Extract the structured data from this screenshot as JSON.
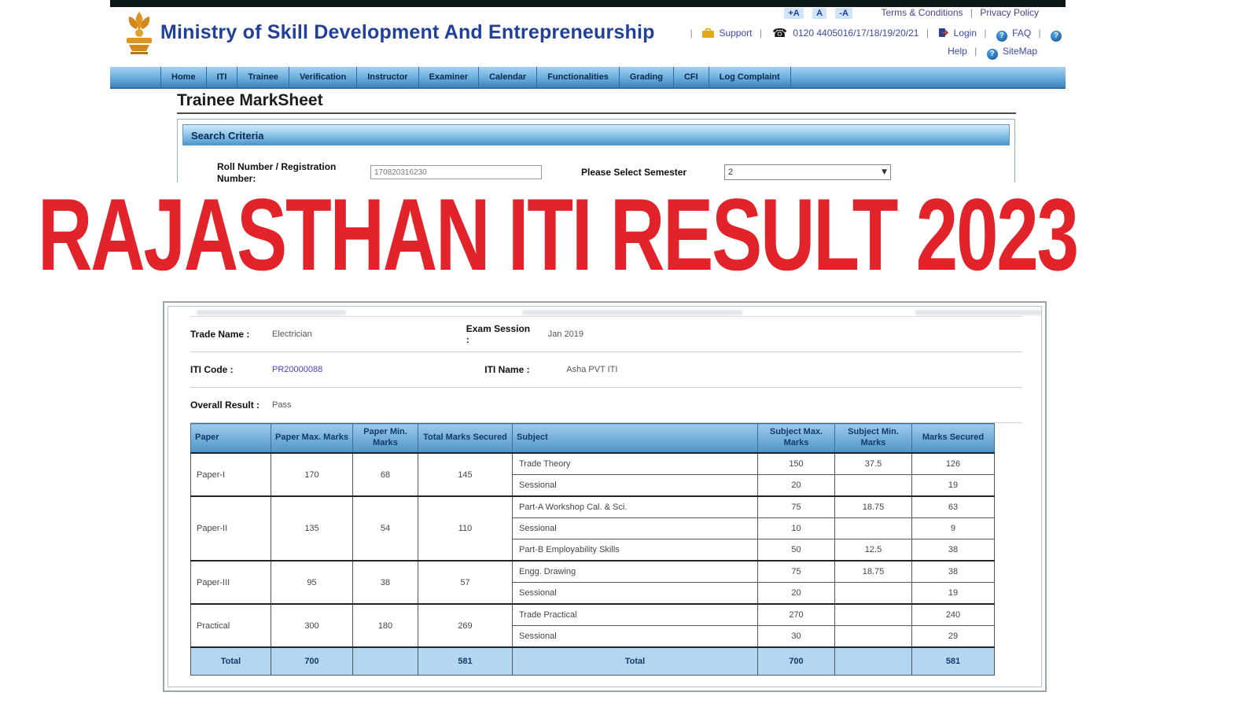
{
  "banner": {
    "text": "RAJASTHAN ITI RESULT 2023",
    "color": "#e2232a"
  },
  "header": {
    "ministry_title": "Ministry of Skill Development And Entrepreneurship",
    "font_size_controls": [
      "+A",
      "A",
      "-A"
    ],
    "sep": "|",
    "terms": "Terms & Conditions",
    "privacy": "Privacy Policy",
    "support": "Support",
    "phone": "0120 4405016/17/18/19/20/21",
    "login": "Login",
    "faq": "FAQ",
    "help": "Help",
    "sitemap": "SiteMap"
  },
  "nav": {
    "items": [
      "Home",
      "ITI",
      "Trainee",
      "Verification",
      "Instructor",
      "Examiner",
      "Calendar",
      "Functionalities",
      "Grading",
      "CFI",
      "Log Complaint"
    ]
  },
  "page": {
    "title": "Trainee MarkSheet",
    "search": {
      "heading": "Search Criteria",
      "roll_label": "Roll Number / Registration Number:",
      "roll_value": "170820316230",
      "semester_label": "Please Select Semester",
      "semester_value": "2"
    },
    "info": {
      "trade_name_label": "Trade Name :",
      "trade_name": "Electrician",
      "exam_session_label": "Exam Session :",
      "exam_session": "Jan 2019",
      "iti_code_label": "ITI Code :",
      "iti_code": "PR20000088",
      "iti_name_label": "ITI Name :",
      "iti_name": "Asha PVT ITI",
      "overall_result_label": "Overall Result :",
      "overall_result": "Pass"
    },
    "table": {
      "headers": [
        "Paper",
        "Paper Max. Marks",
        "Paper Min. Marks",
        "Total Marks Secured",
        "Subject",
        "Subject Max. Marks",
        "Subject Min. Marks",
        "Marks Secured"
      ],
      "papers": [
        {
          "paper": "Paper-I",
          "max": "170",
          "min": "68",
          "secured": "145",
          "subjects": [
            {
              "name": "Trade Theory",
              "max": "150",
              "min": "37.5",
              "secured": "126"
            },
            {
              "name": "Sessional",
              "max": "20",
              "min": "",
              "secured": "19"
            }
          ]
        },
        {
          "paper": "Paper-II",
          "max": "135",
          "min": "54",
          "secured": "110",
          "subjects": [
            {
              "name": "Part-A Workshop Cal. & Sci.",
              "max": "75",
              "min": "18.75",
              "secured": "63"
            },
            {
              "name": "Sessional",
              "max": "10",
              "min": "",
              "secured": "9"
            },
            {
              "name": "Part-B Employability Skills",
              "max": "50",
              "min": "12.5",
              "secured": "38"
            }
          ]
        },
        {
          "paper": "Paper-III",
          "max": "95",
          "min": "38",
          "secured": "57",
          "subjects": [
            {
              "name": "Engg. Drawing",
              "max": "75",
              "min": "18.75",
              "secured": "38"
            },
            {
              "name": "Sessional",
              "max": "20",
              "min": "",
              "secured": "19"
            }
          ]
        },
        {
          "paper": "Practical",
          "max": "300",
          "min": "180",
          "secured": "269",
          "subjects": [
            {
              "name": "Trade Practical",
              "max": "270",
              "min": "",
              "secured": "240"
            },
            {
              "name": "Sessional",
              "max": "30",
              "min": "",
              "secured": "29"
            }
          ]
        }
      ],
      "total": {
        "label": "Total",
        "paper_max": "700",
        "paper_min": "",
        "secured": "581",
        "subject_label": "Total",
        "subject_max": "700",
        "subject_min": "",
        "marks_secured": "581"
      }
    }
  }
}
